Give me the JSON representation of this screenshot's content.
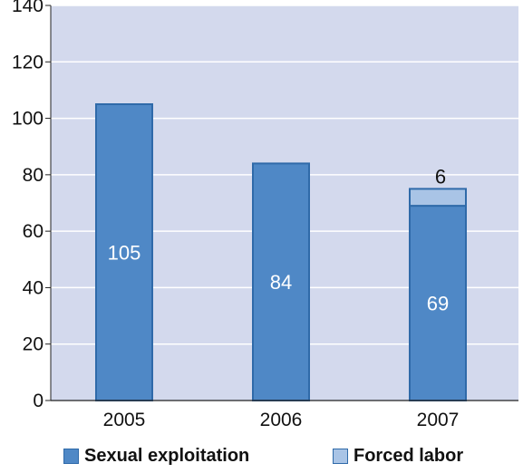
{
  "chart_data": {
    "type": "bar",
    "stacked": true,
    "title": "",
    "xlabel": "",
    "ylabel": "",
    "categories": [
      "2005",
      "2006",
      "2007"
    ],
    "series": [
      {
        "name": "Sexual exploitation",
        "color": "#4f88c6",
        "values": [
          105,
          84,
          69
        ],
        "labels": [
          "105",
          "84",
          "69"
        ]
      },
      {
        "name": "Forced labor",
        "color": "#a9c4e6",
        "values": [
          0,
          0,
          6
        ],
        "labels": [
          "",
          "",
          "6"
        ]
      }
    ],
    "ylim": [
      0,
      140
    ],
    "yticks": [
      0,
      20,
      40,
      60,
      80,
      100,
      120,
      140
    ],
    "grid": true,
    "background_color": "#d3d9ed",
    "legend_position": "bottom"
  }
}
